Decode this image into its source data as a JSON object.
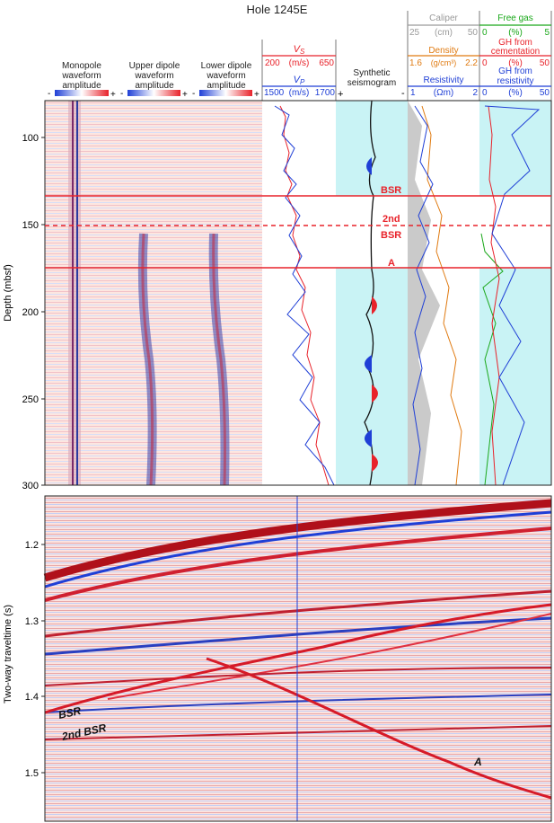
{
  "title": "Hole 1245E",
  "tracks": {
    "monopole": {
      "label_lines": [
        "Monopole",
        "waveform",
        "amplitude"
      ],
      "scale_minus": "-",
      "scale_plus": "+"
    },
    "upper_dipole": {
      "label_lines": [
        "Upper dipole",
        "waveform",
        "amplitude"
      ],
      "scale_minus": "-",
      "scale_plus": "+"
    },
    "lower_dipole": {
      "label_lines": [
        "Lower dipole",
        "waveform",
        "amplitude"
      ],
      "scale_minus": "-",
      "scale_plus": "+"
    },
    "velocity": {
      "vs": {
        "label": "V",
        "sub": "S",
        "min": "200",
        "unit": "(m/s)",
        "max": "650",
        "color": "#e8222a"
      },
      "vp": {
        "label": "V",
        "sub": "P",
        "min": "1500",
        "unit": "(m/s)",
        "max": "1700",
        "color": "#1f3fd6"
      }
    },
    "synthetic": {
      "label_lines": [
        "Synthetic",
        "seismogram"
      ],
      "scale_minus": "-",
      "scale_plus": "+"
    },
    "logs": {
      "caliper": {
        "label": "Caliper",
        "min": "25",
        "unit": "(cm)",
        "max": "50",
        "color": "#9a9a9a"
      },
      "density": {
        "label": "Density",
        "min": "1.6",
        "unit": "(g/cm³)",
        "max": "2.2",
        "color": "#e07b12"
      },
      "resistivity": {
        "label": "Resistivity",
        "min": "1",
        "unit": "(Ωm)",
        "max": "2",
        "color": "#1f3fd6"
      }
    },
    "hydrate": {
      "free_gas": {
        "label": "Free gas",
        "min": "0",
        "unit": "(%)",
        "max": "5",
        "color": "#1aa81a"
      },
      "gh_cementation": {
        "label_lines": [
          "GH from",
          "cementation"
        ],
        "min": "0",
        "unit": "(%)",
        "max": "50",
        "color": "#e8222a"
      },
      "gh_resistivity": {
        "label_lines": [
          "GH from",
          "resistivity"
        ],
        "min": "0",
        "unit": "(%)",
        "max": "50",
        "color": "#1f3fd6"
      }
    }
  },
  "depth_axis": {
    "label": "Depth (mbsf)",
    "ticks": [
      "100",
      "150",
      "200",
      "250",
      "300"
    ]
  },
  "markers": {
    "bsr": "BSR",
    "second_line1": "2nd",
    "second_line2": "BSR",
    "a": "A"
  },
  "seismic": {
    "axis_label": "Two-way traveltime (s)",
    "ticks": [
      "1.2",
      "1.3",
      "1.4",
      "1.5"
    ],
    "labels": {
      "bsr": "BSR",
      "second_bsr": "2nd BSR",
      "a": "A"
    }
  },
  "colors": {
    "accent_red": "#e8222a",
    "accent_blue": "#1f3fd6",
    "cyan_fill": "#c9f3f5",
    "pink_fill": "#fde6e0"
  }
}
